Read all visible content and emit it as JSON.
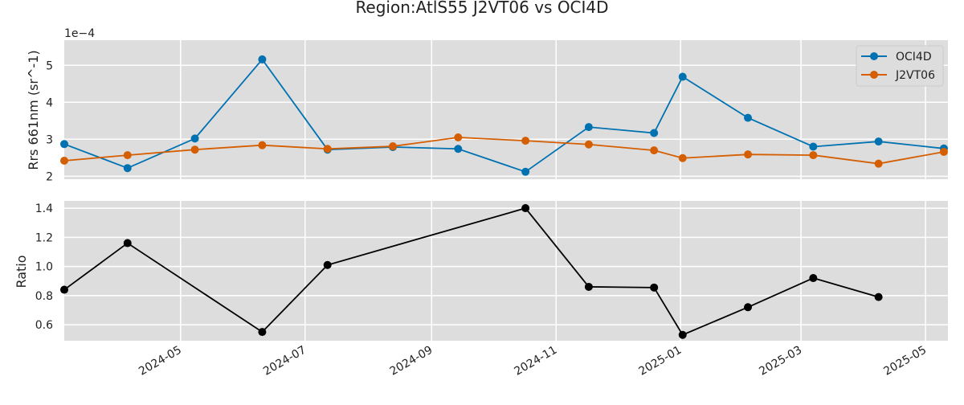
{
  "title": "Region:AtlS55 J2VT06 vs OCI4D",
  "chart_data": [
    {
      "type": "line",
      "ylabel": "Rrs 661nm (sr^-1)",
      "offset_label": "1e−4",
      "scale": 0.0001,
      "ylim": [
        1.92,
        5.68
      ],
      "yticks": [
        2,
        3,
        4,
        5
      ],
      "grid": true,
      "legend_position": "top-right",
      "series": [
        {
          "name": "OCI4D",
          "color": "#0072b2",
          "points": [
            {
              "x": "2024-03-05",
              "y": 2.87
            },
            {
              "x": "2024-04-05",
              "y": 2.22
            },
            {
              "x": "2024-05-08",
              "y": 3.02
            },
            {
              "x": "2024-06-10",
              "y": 5.16
            },
            {
              "x": "2024-07-12",
              "y": 2.72
            },
            {
              "x": "2024-08-13",
              "y": 2.79
            },
            {
              "x": "2024-09-14",
              "y": 2.74
            },
            {
              "x": "2024-10-17",
              "y": 2.12
            },
            {
              "x": "2024-11-17",
              "y": 3.33
            },
            {
              "x": "2024-12-19",
              "y": 3.17
            },
            {
              "x": "2025-01-02",
              "y": 4.69
            },
            {
              "x": "2025-02-03",
              "y": 3.58
            },
            {
              "x": "2025-03-07",
              "y": 2.8
            },
            {
              "x": "2025-04-08",
              "y": 2.94
            },
            {
              "x": "2025-05-10",
              "y": 2.75
            }
          ]
        },
        {
          "name": "J2VT06",
          "color": "#d55e00",
          "points": [
            {
              "x": "2024-03-05",
              "y": 2.42
            },
            {
              "x": "2024-04-05",
              "y": 2.57
            },
            {
              "x": "2024-05-08",
              "y": 2.72
            },
            {
              "x": "2024-06-10",
              "y": 2.84
            },
            {
              "x": "2024-07-12",
              "y": 2.74
            },
            {
              "x": "2024-08-13",
              "y": 2.81
            },
            {
              "x": "2024-09-14",
              "y": 3.05
            },
            {
              "x": "2024-10-17",
              "y": 2.96
            },
            {
              "x": "2024-11-17",
              "y": 2.86
            },
            {
              "x": "2024-12-19",
              "y": 2.7
            },
            {
              "x": "2025-01-02",
              "y": 2.49
            },
            {
              "x": "2025-02-03",
              "y": 2.59
            },
            {
              "x": "2025-03-07",
              "y": 2.57
            },
            {
              "x": "2025-04-08",
              "y": 2.34
            },
            {
              "x": "2025-05-10",
              "y": 2.66
            }
          ]
        }
      ]
    },
    {
      "type": "line",
      "ylabel": "Ratio",
      "ylim": [
        0.49,
        1.45
      ],
      "yticks": [
        0.6,
        0.8,
        1.0,
        1.2,
        1.4
      ],
      "ytick_labels": [
        "0.6",
        "0.8",
        "1.0",
        "1.2",
        "1.4"
      ],
      "grid": true,
      "series": [
        {
          "color": "#000000",
          "points": [
            {
              "x": "2024-03-05",
              "y": 0.84
            },
            {
              "x": "2024-04-05",
              "y": 1.16
            },
            {
              "x": "2024-06-10",
              "y": 0.55
            },
            {
              "x": "2024-07-12",
              "y": 1.01
            },
            {
              "x": "2024-10-17",
              "y": 1.4
            },
            {
              "x": "2024-11-17",
              "y": 0.86
            },
            {
              "x": "2024-12-19",
              "y": 0.855
            },
            {
              "x": "2025-01-02",
              "y": 0.53
            },
            {
              "x": "2025-02-03",
              "y": 0.72
            },
            {
              "x": "2025-03-07",
              "y": 0.92
            },
            {
              "x": "2025-04-08",
              "y": 0.79
            }
          ]
        }
      ]
    }
  ],
  "x_axis": {
    "xlim": [
      "2024-03-05",
      "2025-05-12"
    ],
    "ticks": [
      "2024-05-01",
      "2024-07-01",
      "2024-09-01",
      "2024-11-01",
      "2025-01-01",
      "2025-03-01",
      "2025-05-01"
    ],
    "tick_labels": [
      "2024-05",
      "2024-07",
      "2024-09",
      "2024-11",
      "2025-01",
      "2025-03",
      "2025-05"
    ]
  }
}
